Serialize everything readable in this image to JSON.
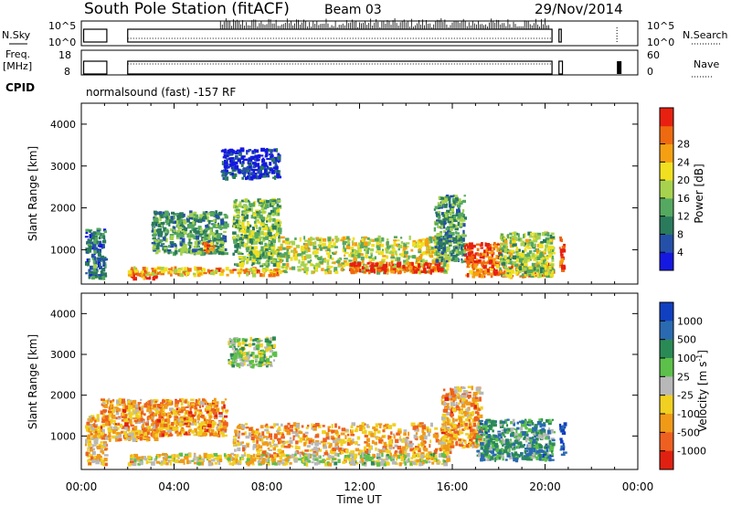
{
  "header": {
    "station": "South Pole Station (fitACF)",
    "beam": "Beam 03",
    "date": "29/Nov/2014"
  },
  "top_panels": {
    "nsky": {
      "label": "N.Sky",
      "ticks": [
        "10^5",
        "10^0"
      ]
    },
    "nsearch": {
      "label": "N.Search",
      "ticks": [
        "10^5",
        "10^0"
      ]
    },
    "freq": {
      "label_line1": "Freq.",
      "label_line2": "[MHz]",
      "ticks": [
        "18",
        "8"
      ]
    },
    "nave": {
      "label": "Nave",
      "ticks": [
        "60",
        "0"
      ]
    },
    "cpid": {
      "label": "CPID",
      "text": "normalsound (fast) -157 RF"
    }
  },
  "x_axis": {
    "label": "Time UT",
    "ticks": [
      "00:00",
      "04:00",
      "08:00",
      "12:00",
      "16:00",
      "20:00",
      "00:00"
    ]
  },
  "chart_data": [
    {
      "type": "heatmap",
      "name": "power",
      "ylabel": "Slant Range [km]",
      "yticks": [
        "1000",
        "2000",
        "3000",
        "4000"
      ],
      "ylim": [
        180,
        4500
      ],
      "xlim_hours": [
        0,
        24
      ],
      "colorbar": {
        "label": "Power [dB]",
        "ticks": [
          "4",
          "8",
          "12",
          "16",
          "20",
          "24",
          "28"
        ],
        "colors": [
          "#1418e0",
          "#2450a8",
          "#2a7a5c",
          "#55a860",
          "#a6d24e",
          "#f0e020",
          "#f5a012",
          "#ee6a10",
          "#e82010"
        ]
      },
      "echo_regions": [
        {
          "t": [
            0.15,
            1.0
          ],
          "r": [
            300,
            1500
          ],
          "level": 0.25
        },
        {
          "t": [
            2.0,
            3.2
          ],
          "r": [
            300,
            500
          ],
          "level": 0.85
        },
        {
          "t": [
            2.0,
            8.5
          ],
          "r": [
            380,
            560
          ],
          "level": 0.7
        },
        {
          "t": [
            3.0,
            6.2
          ],
          "r": [
            900,
            1900
          ],
          "level": 0.35
        },
        {
          "t": [
            5.2,
            5.8
          ],
          "r": [
            950,
            1150
          ],
          "level": 0.8
        },
        {
          "t": [
            6.0,
            8.5
          ],
          "r": [
            2700,
            3400
          ],
          "level": 0.1
        },
        {
          "t": [
            6.5,
            8.5
          ],
          "r": [
            600,
            2200
          ],
          "level": 0.45
        },
        {
          "t": [
            8.5,
            15.8
          ],
          "r": [
            450,
            1300
          ],
          "level": 0.55
        },
        {
          "t": [
            11.5,
            15.5
          ],
          "r": [
            450,
            700
          ],
          "level": 0.9
        },
        {
          "t": [
            15.2,
            16.5
          ],
          "r": [
            700,
            2300
          ],
          "level": 0.35
        },
        {
          "t": [
            16.5,
            18.0
          ],
          "r": [
            650,
            1150
          ],
          "level": 0.9
        },
        {
          "t": [
            16.5,
            20.3
          ],
          "r": [
            350,
            650
          ],
          "level": 0.8
        },
        {
          "t": [
            18.0,
            20.3
          ],
          "r": [
            350,
            1400
          ],
          "level": 0.5
        },
        {
          "t": [
            20.6,
            20.8
          ],
          "r": [
            400,
            1300
          ],
          "level": 0.9
        }
      ]
    },
    {
      "type": "heatmap",
      "name": "velocity",
      "ylabel": "Slant Range [km]",
      "yticks": [
        "1000",
        "2000",
        "3000",
        "4000"
      ],
      "ylim": [
        180,
        4500
      ],
      "xlim_hours": [
        0,
        24
      ],
      "colorbar": {
        "label": "Velocity [m s^-1]",
        "ticks": [
          "1000",
          "500",
          "100",
          "25",
          "-25",
          "-100",
          "-500",
          "-1000"
        ],
        "colors": [
          "#1040c0",
          "#2a6ab0",
          "#2a8a55",
          "#5cc04a",
          "#b8b8b8",
          "#f0d020",
          "#f09a18",
          "#ee6020",
          "#e02010"
        ]
      },
      "echo_regions": [
        {
          "t": [
            0.15,
            1.0
          ],
          "r": [
            300,
            1500
          ],
          "level": 0.65
        },
        {
          "t": [
            0.8,
            3.2
          ],
          "r": [
            900,
            1900
          ],
          "level": 0.7
        },
        {
          "t": [
            2.0,
            8.5
          ],
          "r": [
            300,
            560
          ],
          "level": 0.58
        },
        {
          "t": [
            3.0,
            6.2
          ],
          "r": [
            1000,
            1900
          ],
          "level": 0.72
        },
        {
          "t": [
            6.3,
            8.3
          ],
          "r": [
            2700,
            3400
          ],
          "level": 0.45
        },
        {
          "t": [
            6.5,
            16.0
          ],
          "r": [
            500,
            1300
          ],
          "level": 0.68
        },
        {
          "t": [
            8.5,
            15.8
          ],
          "r": [
            300,
            550
          ],
          "level": 0.52
        },
        {
          "t": [
            15.5,
            17.2
          ],
          "r": [
            700,
            2200
          ],
          "level": 0.7
        },
        {
          "t": [
            17.0,
            20.3
          ],
          "r": [
            400,
            1400
          ],
          "level": 0.3
        },
        {
          "t": [
            20.6,
            20.8
          ],
          "r": [
            500,
            1300
          ],
          "level": 0.05
        }
      ]
    }
  ]
}
